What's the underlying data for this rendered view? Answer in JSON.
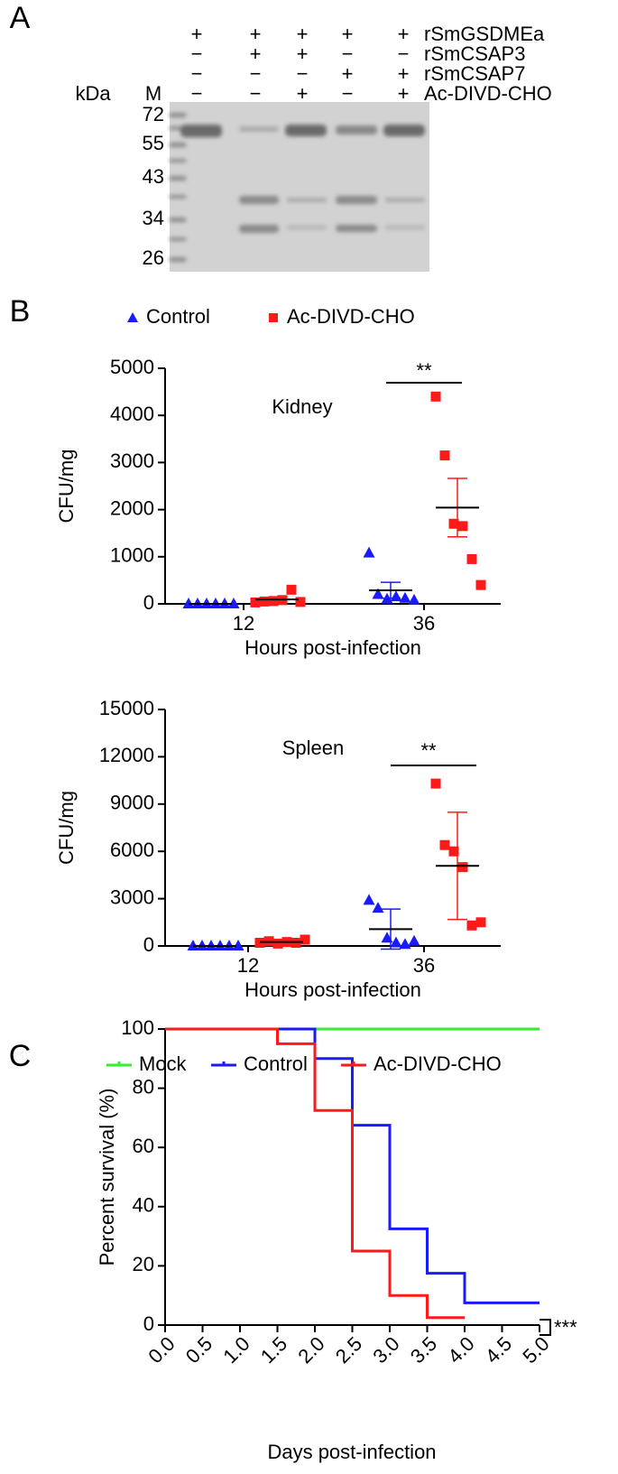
{
  "panel_labels": [
    "A",
    "B",
    "C"
  ],
  "gel": {
    "row_labels": [
      "rSmGSDMEa",
      "rSmCSAP3",
      "rSmCSAP7",
      "Ac-DIVD-CHO"
    ],
    "signs": [
      [
        "+",
        "+",
        "+",
        "+",
        "+"
      ],
      [
        "−",
        "+",
        "+",
        "−",
        "−"
      ],
      [
        "−",
        "−",
        "−",
        "+",
        "+"
      ],
      [
        "−",
        "−",
        "+",
        "−",
        "+"
      ]
    ],
    "kda_label": "kDa",
    "marker_label": "M",
    "markers": [
      72,
      55,
      43,
      34,
      26
    ]
  },
  "chart_data": [
    {
      "type": "dot",
      "title": "Kidney",
      "y_label": "CFU/mg",
      "x_label": "Hours post-infection",
      "annotation": "**",
      "categories": [
        "12",
        "36"
      ],
      "ylim": [
        0,
        5000
      ],
      "yticks": [
        0,
        1000,
        2000,
        3000,
        4000,
        5000
      ],
      "series": [
        {
          "name": "Control",
          "color": "#1a1aff",
          "marker": "triangle",
          "values": [
            [
              0,
              0,
              0,
              0,
              0,
              0
            ],
            [
              1080,
              200,
              100,
              150,
              120,
              80
            ]
          ],
          "means": [
            0,
            288
          ],
          "errors": [
            0,
            170
          ]
        },
        {
          "name": "Ac-DIVD-CHO",
          "color": "#ff1a1a",
          "marker": "square",
          "values": [
            [
              30,
              50,
              60,
              80,
              300,
              40
            ],
            [
              4400,
              3150,
              1700,
              1650,
              950,
              400
            ]
          ],
          "means": [
            93,
            2042
          ],
          "errors": [
            42,
            620
          ]
        }
      ]
    },
    {
      "type": "dot",
      "title": "Spleen",
      "y_label": "CFU/mg",
      "x_label": "Hours post-infection",
      "annotation": "**",
      "categories": [
        "12",
        "36"
      ],
      "ylim": [
        0,
        15000
      ],
      "yticks": [
        0,
        3000,
        6000,
        9000,
        12000,
        15000
      ],
      "series": [
        {
          "color": "#1a1aff",
          "marker": "triangle",
          "values": [
            [
              0,
              0,
              0,
              0,
              0,
              0
            ],
            [
              2900,
              2400,
              500,
              200,
              100,
              300
            ]
          ],
          "means": [
            0,
            1067
          ],
          "errors": [
            0,
            1270
          ]
        },
        {
          "color": "#ff1a1a",
          "marker": "square",
          "values": [
            [
              200,
              300,
              150,
              250,
              200,
              400
            ],
            [
              10300,
              6400,
              6000,
              5000,
              1300,
              1500
            ]
          ],
          "means": [
            250,
            5083
          ],
          "errors": [
            40,
            3400
          ]
        }
      ]
    },
    {
      "type": "survival",
      "y_label": "Percent survival (%)",
      "x_label": "Days post-infection",
      "annotation": "***",
      "xlim": [
        0,
        5
      ],
      "xticks": [
        {
          "value": 0,
          "label": "0.0"
        },
        {
          "value": 0.5,
          "label": "0.5"
        },
        {
          "value": 1,
          "label": "1.0"
        },
        {
          "value": 1.5,
          "label": "1.5"
        },
        {
          "value": 2,
          "label": "2.0"
        },
        {
          "value": 2.5,
          "label": "2.5"
        },
        {
          "value": 3,
          "label": "3.0"
        },
        {
          "value": 3.5,
          "label": "3.5"
        },
        {
          "value": 4,
          "label": "4.0"
        },
        {
          "value": 4.5,
          "label": "4.5"
        },
        {
          "value": 5,
          "label": "5.0"
        }
      ],
      "ylim": [
        0,
        100
      ],
      "yticks": [
        0,
        20,
        40,
        60,
        80,
        100
      ],
      "series": [
        {
          "name": "Mock",
          "color": "#33ee33",
          "x": [
            0,
            5
          ],
          "values": [
            100,
            100
          ]
        },
        {
          "name": "Control",
          "color": "#1a1aff",
          "x": [
            0,
            2,
            2.5,
            3,
            3.5,
            4,
            5
          ],
          "values": [
            100,
            90,
            67.5,
            32.5,
            17.5,
            7.5,
            7.5
          ]
        },
        {
          "name": "Ac-DIVD-CHO",
          "color": "#ff1a1a",
          "x": [
            0,
            1.5,
            2,
            2.5,
            3,
            3.5,
            4
          ],
          "values": [
            100,
            95,
            72.5,
            25,
            10,
            2.5,
            2.5
          ]
        }
      ]
    }
  ]
}
